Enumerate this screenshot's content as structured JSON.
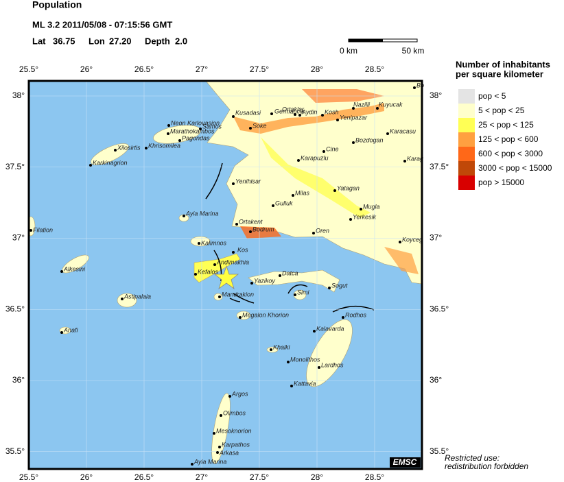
{
  "header": {
    "title": "Population",
    "event": "ML 3.2  2011/05/08 - 07:15:56 GMT",
    "lat_label": "Lat",
    "lat": "36.75",
    "lon_label": "Lon",
    "lon": "27.20",
    "depth_label": "Depth",
    "depth": "2.0"
  },
  "scale": {
    "start": "0 km",
    "end": "50 km"
  },
  "lon_ticks": [
    {
      "value": 25.5,
      "label": "25.5°"
    },
    {
      "value": 26,
      "label": "26°"
    },
    {
      "value": 26.5,
      "label": "26.5°"
    },
    {
      "value": 27,
      "label": "27°"
    },
    {
      "value": 27.5,
      "label": "27.5°"
    },
    {
      "value": 28,
      "label": "28°"
    },
    {
      "value": 28.5,
      "label": "28.5°"
    }
  ],
  "lat_ticks": [
    {
      "value": 38,
      "label": "38°"
    },
    {
      "value": 37.5,
      "label": "37.5°"
    },
    {
      "value": 37,
      "label": "37°"
    },
    {
      "value": 36.5,
      "label": "36.5°"
    },
    {
      "value": 36,
      "label": "36°"
    },
    {
      "value": 35.5,
      "label": "35.5°"
    }
  ],
  "legend": {
    "title": [
      "Number of inhabitants",
      "per square kilometer"
    ],
    "items": [
      {
        "label": "pop < 5",
        "color": "#e4e4e4"
      },
      {
        "label": "5 < pop < 25",
        "color": "#ffffcc"
      },
      {
        "label": "25 < pop < 125",
        "color": "#ffff55"
      },
      {
        "label": "125 < pop < 600",
        "color": "#ffa040"
      },
      {
        "label": "600 < pop < 3000",
        "color": "#ff6818"
      },
      {
        "label": "3000 < pop < 15000",
        "color": "#c04808"
      },
      {
        "label": "pop > 15000",
        "color": "#d80000"
      }
    ]
  },
  "towns": [
    "Bo",
    "Kuyucak",
    "Nazilli",
    "Ortaklar",
    "Germancik",
    "Aydin",
    "Kosh",
    "Kusadasi",
    "Yenipazar",
    "Soke",
    "Karacasu",
    "Bozdogan",
    "Cine",
    "Karapuzlu",
    "Karag",
    "Yenihisar",
    "Milas",
    "Yatagan",
    "Gulluk",
    "Mugla",
    "Yerkesik",
    "Ortakent",
    "Bodrum",
    "Oren",
    "Koyceg",
    "Kos",
    "Kalimnos",
    "Ayia Marina",
    "Andimakhia",
    "Kefalos",
    "Mandrakion",
    "Yazikoy",
    "Datca",
    "Simi",
    "Sogut",
    "Megalon Khorion",
    "Rodhos",
    "Kalavarda",
    "Khalki",
    "Monolithos",
    "Lardhos",
    "Kattavia",
    "Argos",
    "Olimbos",
    "Mesoknorion",
    "Karpathos",
    "Arkasa",
    "Ayia Marina",
    "Anafi",
    "Astipalaia",
    "Alkesini",
    "Filation",
    "Karkinagrion",
    "Xilosirtis",
    "Khrisomilea",
    "Neon Karlovasion",
    "Marathokambos",
    "Samos",
    "Pagondas"
  ],
  "logo": "EMSC",
  "footer": [
    "Restricted use:",
    "redistribution forbidden"
  ]
}
